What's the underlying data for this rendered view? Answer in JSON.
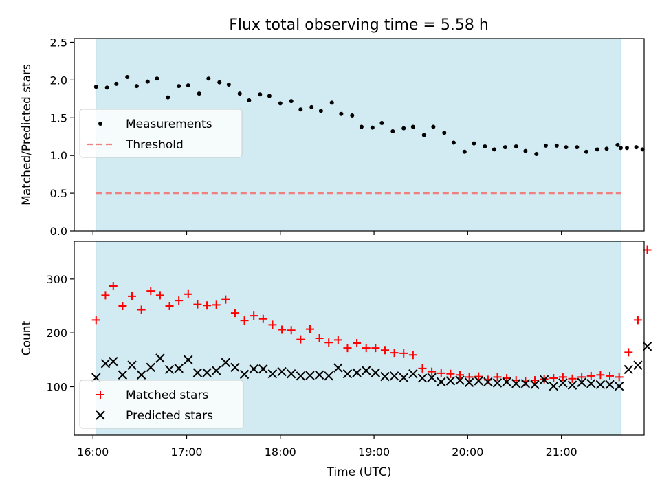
{
  "chart_data": [
    {
      "type": "scatter",
      "title": "Flux total observing time = 5.58 h",
      "ylabel": "Matched/Predicted stars",
      "xlabel": "",
      "xlim": [
        "15:48",
        "21:53"
      ],
      "ylim": [
        0,
        2.55
      ],
      "x_ticks": [
        "16:00",
        "17:00",
        "18:00",
        "19:00",
        "20:00",
        "21:00"
      ],
      "y_ticks": [
        "0.0",
        "0.5",
        "1.0",
        "1.5",
        "2.0",
        "2.5"
      ],
      "shaded_span": {
        "start": "16:02",
        "end": "21:38",
        "color": "#add8e6"
      },
      "legend_position": "center-left",
      "series": [
        {
          "name": "Measurements",
          "marker": "dot",
          "color": "#000000",
          "x": [
            "16:02",
            "16:09",
            "16:15",
            "16:22",
            "16:28",
            "16:35",
            "16:41",
            "16:48",
            "16:55",
            "17:01",
            "17:08",
            "17:14",
            "17:21",
            "17:27",
            "17:34",
            "17:40",
            "17:47",
            "17:53",
            "18:00",
            "18:07",
            "18:13",
            "18:20",
            "18:26",
            "18:33",
            "18:39",
            "18:46",
            "18:52",
            "18:59",
            "19:05",
            "19:12",
            "19:19",
            "19:25",
            "19:32",
            "19:38",
            "19:45",
            "19:51",
            "19:58",
            "20:04",
            "20:11",
            "20:17",
            "20:24",
            "20:31",
            "20:37",
            "20:44",
            "20:50",
            "20:57",
            "21:03",
            "21:10",
            "21:16",
            "21:23",
            "21:29",
            "21:36",
            "21:38",
            "21:42",
            "21:48",
            "21:52"
          ],
          "y": [
            1.91,
            1.9,
            1.95,
            2.04,
            1.92,
            1.98,
            2.02,
            1.77,
            1.92,
            1.93,
            1.82,
            2.02,
            1.97,
            1.94,
            1.82,
            1.73,
            1.81,
            1.79,
            1.69,
            1.72,
            1.61,
            1.64,
            1.59,
            1.7,
            1.55,
            1.53,
            1.38,
            1.37,
            1.43,
            1.32,
            1.36,
            1.38,
            1.27,
            1.38,
            1.3,
            1.17,
            1.05,
            1.16,
            1.12,
            1.08,
            1.11,
            1.12,
            1.06,
            1.02,
            1.13,
            1.13,
            1.11,
            1.11,
            1.05,
            1.08,
            1.09,
            1.14,
            1.1,
            1.1,
            1.11,
            1.08
          ]
        },
        {
          "name": "Threshold",
          "style": "dashed",
          "color": "#f08080",
          "x": [
            "16:02",
            "21:38"
          ],
          "y": [
            0.5,
            0.5
          ]
        }
      ]
    },
    {
      "type": "scatter",
      "title": "",
      "ylabel": "Count",
      "xlabel": "Time (UTC)",
      "xlim": [
        "15:48",
        "21:53"
      ],
      "ylim": [
        10,
        370
      ],
      "x_ticks": [
        "16:00",
        "17:00",
        "18:00",
        "19:00",
        "20:00",
        "21:00"
      ],
      "y_ticks": [
        "100",
        "200",
        "300"
      ],
      "shaded_span": {
        "start": "16:02",
        "end": "21:38",
        "color": "#add8e6"
      },
      "legend_position": "lower-left",
      "series": [
        {
          "name": "Matched stars",
          "marker": "plus",
          "color": "#ff0000",
          "x": [
            "16:02",
            "16:08",
            "16:13",
            "16:19",
            "16:25",
            "16:31",
            "16:37",
            "16:43",
            "16:49",
            "16:55",
            "17:01",
            "17:07",
            "17:13",
            "17:19",
            "17:25",
            "17:31",
            "17:37",
            "17:43",
            "17:49",
            "17:55",
            "18:01",
            "18:07",
            "18:13",
            "18:19",
            "18:25",
            "18:31",
            "18:37",
            "18:43",
            "18:49",
            "18:55",
            "19:01",
            "19:07",
            "19:13",
            "19:19",
            "19:25",
            "19:31",
            "19:37",
            "19:43",
            "19:49",
            "19:55",
            "20:01",
            "20:07",
            "20:13",
            "20:19",
            "20:25",
            "20:31",
            "20:37",
            "20:43",
            "20:49",
            "20:55",
            "21:01",
            "21:07",
            "21:13",
            "21:19",
            "21:25",
            "21:31",
            "21:37",
            "21:43",
            "21:49",
            "21:55"
          ],
          "y": [
            224,
            270,
            287,
            250,
            268,
            243,
            278,
            270,
            250,
            260,
            272,
            253,
            251,
            252,
            262,
            237,
            223,
            232,
            226,
            215,
            206,
            205,
            188,
            207,
            190,
            182,
            187,
            172,
            181,
            172,
            172,
            168,
            163,
            162,
            159,
            134,
            128,
            125,
            124,
            122,
            118,
            119,
            113,
            118,
            116,
            112,
            110,
            112,
            114,
            116,
            118,
            115,
            118,
            120,
            122,
            120,
            118,
            164,
            224,
            354
          ]
        },
        {
          "name": "Predicted stars",
          "marker": "x",
          "color": "#000000",
          "x": [
            "16:02",
            "16:08",
            "16:13",
            "16:19",
            "16:25",
            "16:31",
            "16:37",
            "16:43",
            "16:49",
            "16:55",
            "17:01",
            "17:07",
            "17:13",
            "17:19",
            "17:25",
            "17:31",
            "17:37",
            "17:43",
            "17:49",
            "17:55",
            "18:01",
            "18:07",
            "18:13",
            "18:19",
            "18:25",
            "18:31",
            "18:37",
            "18:43",
            "18:49",
            "18:55",
            "19:01",
            "19:07",
            "19:13",
            "19:19",
            "19:25",
            "19:31",
            "19:37",
            "19:43",
            "19:49",
            "19:55",
            "20:01",
            "20:07",
            "20:13",
            "20:19",
            "20:25",
            "20:31",
            "20:37",
            "20:43",
            "20:49",
            "20:55",
            "21:01",
            "21:07",
            "21:13",
            "21:19",
            "21:25",
            "21:31",
            "21:37",
            "21:43",
            "21:49",
            "21:55"
          ],
          "y": [
            117,
            143,
            147,
            122,
            140,
            122,
            136,
            153,
            132,
            134,
            150,
            126,
            126,
            130,
            145,
            136,
            123,
            133,
            133,
            124,
            128,
            124,
            120,
            121,
            122,
            120,
            135,
            124,
            126,
            130,
            126,
            119,
            120,
            117,
            124,
            116,
            117,
            109,
            111,
            112,
            108,
            111,
            109,
            107,
            109,
            106,
            106,
            104,
            113,
            101,
            107,
            103,
            108,
            106,
            104,
            104,
            101,
            132,
            140,
            175
          ]
        }
      ]
    }
  ]
}
